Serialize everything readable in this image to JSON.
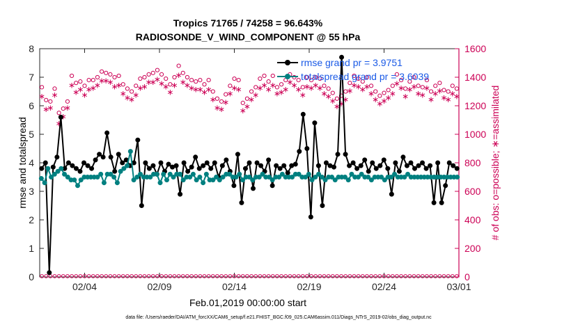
{
  "chart_data": {
    "type": "line",
    "title_line1": "Tropics 71765 / 74258 = 96.643%",
    "title_line2": "RADIOSONDE_V_WIND_COMPONENT @ 55 hPa",
    "xlabel": "Feb.01,2019 00:00:00 start",
    "ylabel_left": "rmse and totalspread",
    "ylabel_right": "# of obs: o=possible; ∗=assimilated",
    "footer": "data file: /Users/raeder/DAI/ATM_forcXX/CAM6_setup/f.e21.FHIST_BGC.f09_025.CAM6assim.011/Diags_NTrS_2019-02/obs_diag_output.nc",
    "x_range_days": [
      0,
      28
    ],
    "x_ticks": [
      {
        "day": 3,
        "label": "02/04"
      },
      {
        "day": 8,
        "label": "02/09"
      },
      {
        "day": 13,
        "label": "02/14"
      },
      {
        "day": 18,
        "label": "02/19"
      },
      {
        "day": 23,
        "label": "02/24"
      },
      {
        "day": 28,
        "label": "03/01"
      }
    ],
    "y_left": {
      "range": [
        0,
        8
      ],
      "ticks": [
        "0",
        "1",
        "2",
        "3",
        "4",
        "5",
        "6",
        "7",
        "8"
      ]
    },
    "y_right": {
      "range": [
        0,
        1600
      ],
      "ticks": [
        "0",
        "200",
        "400",
        "600",
        "800",
        "1000",
        "1200",
        "1400",
        "1600"
      ]
    },
    "colors": {
      "rmse": "#000000",
      "spread": "#008080",
      "obs": "#cc0055",
      "legend_text": "#1a5ae6"
    },
    "series": [
      {
        "name": "rmse grand pr = 3.9751",
        "values": [
          3.8,
          4.0,
          0.15,
          3.85,
          4.2,
          5.6,
          3.8,
          4.0,
          3.9,
          3.8,
          3.7,
          4.0,
          3.9,
          3.8,
          4.1,
          4.3,
          4.2,
          5.05,
          4.2,
          3.7,
          4.3,
          4.0,
          4.1,
          3.9,
          4.0,
          4.8,
          2.5,
          4.0,
          3.8,
          3.9,
          3.6,
          4.0,
          3.7,
          3.95,
          3.85,
          3.9,
          2.9,
          4.0,
          3.7,
          3.85,
          4.2,
          3.8,
          3.9,
          4.0,
          3.8,
          4.0,
          3.5,
          3.9,
          4.1,
          3.7,
          3.2,
          4.3,
          2.6,
          3.8,
          4.0,
          3.1,
          4.0,
          3.9,
          3.7,
          4.1,
          3.2,
          3.9,
          3.8,
          3.9,
          3.65,
          3.9,
          3.95,
          4.4,
          5.7,
          4.5,
          2.1,
          5.4,
          3.9,
          2.5,
          4.0,
          3.9,
          3.85,
          4.3,
          7.7,
          4.3,
          3.9,
          4.0,
          3.8,
          3.9,
          4.1,
          3.7,
          4.0,
          3.8,
          3.9,
          4.1,
          3.8,
          2.9,
          4.0,
          3.7,
          4.2,
          3.9,
          4.0,
          3.8,
          3.9,
          4.0,
          3.8,
          3.9,
          2.6,
          4.0,
          2.6,
          3.2,
          4.0,
          3.9,
          3.8
        ],
        "marker": "circle-filled"
      },
      {
        "name": "totalspread grand pr = 3.6039",
        "values": [
          3.45,
          3.3,
          3.8,
          3.5,
          3.6,
          3.7,
          3.8,
          3.6,
          3.5,
          3.4,
          3.4,
          3.2,
          3.4,
          3.5,
          3.5,
          3.5,
          3.5,
          3.5,
          3.6,
          3.3,
          3.6,
          3.6,
          3.5,
          3.3,
          3.7,
          3.8,
          3.9,
          4.4,
          3.4,
          3.5,
          3.6,
          3.5,
          3.5,
          3.5,
          3.6,
          3.6,
          3.3,
          3.6,
          3.4,
          3.6,
          3.5,
          3.6,
          3.6,
          3.4,
          3.5,
          3.5,
          3.6,
          3.4,
          3.5,
          3.3,
          3.6,
          3.4,
          3.4,
          3.5,
          3.4,
          3.5,
          3.6,
          3.6,
          3.5,
          3.5,
          3.6,
          3.4,
          3.5,
          3.5,
          3.4,
          3.5,
          3.5,
          3.6,
          3.5,
          3.5,
          3.4,
          3.5,
          3.5,
          3.6,
          3.5,
          3.5,
          3.5,
          3.6,
          3.6,
          3.5,
          3.5,
          3.6,
          3.4,
          3.5,
          3.6,
          3.5,
          3.4,
          3.5,
          3.5,
          3.4,
          3.5,
          3.5,
          3.5,
          3.4,
          3.6,
          3.5,
          3.5,
          3.6,
          3.5,
          3.5,
          3.4,
          3.5,
          3.5,
          3.5,
          3.4,
          3.5,
          3.5,
          3.6,
          3.5,
          3.5,
          3.5,
          3.6,
          3.5,
          3.5,
          3.5,
          3.5,
          3.5,
          3.5,
          3.5,
          3.5,
          3.5,
          3.5,
          3.5,
          3.5,
          3.5,
          3.5,
          3.5
        ],
        "marker": "circle-filled"
      }
    ],
    "obs_possible": [
      1330,
      1240,
      1230,
      1320,
      1150,
      1180,
      1230,
      1410,
      1360,
      1370,
      1340,
      1380,
      1380,
      1400,
      1440,
      1430,
      1420,
      1400,
      1410,
      1350,
      1320,
      1300,
      1340,
      1390,
      1400,
      1420,
      1430,
      1450,
      1420,
      1390,
      1350,
      1400,
      1480,
      1430,
      1400,
      1380,
      1370,
      1380,
      1350,
      1380,
      1300,
      1250,
      1230,
      1280,
      1340,
      1390,
      1380,
      1220,
      1250,
      1300,
      1330,
      1390,
      1410,
      1370,
      1410,
      1330,
      1350,
      1380,
      1420,
      1400,
      1380,
      1330,
      1400,
      1380,
      1400,
      1390,
      1340,
      1320,
      1290,
      1250,
      1270,
      1300,
      1360,
      1410,
      1390,
      1370,
      1400,
      1340,
      1300,
      1270,
      1290,
      1310,
      1340,
      1420,
      1380,
      1320,
      1370,
      1400,
      1340,
      1330,
      1380,
      1300,
      1340,
      1360,
      1310,
      1300,
      1340,
      1320
    ],
    "obs_assimilated": [
      1270,
      1180,
      1190,
      1280,
      1080,
      1130,
      1190,
      1350,
      1300,
      1320,
      1280,
      1320,
      1330,
      1350,
      1380,
      1380,
      1370,
      1340,
      1350,
      1290,
      1260,
      1250,
      1280,
      1330,
      1340,
      1370,
      1370,
      1390,
      1360,
      1340,
      1300,
      1350,
      1420,
      1370,
      1350,
      1330,
      1320,
      1320,
      1300,
      1320,
      1250,
      1190,
      1180,
      1230,
      1290,
      1330,
      1320,
      1170,
      1200,
      1250,
      1280,
      1330,
      1350,
      1320,
      1350,
      1290,
      1300,
      1320,
      1370,
      1350,
      1320,
      1280,
      1340,
      1330,
      1350,
      1330,
      1290,
      1270,
      1240,
      1200,
      1220,
      1250,
      1310,
      1350,
      1340,
      1320,
      1340,
      1290,
      1250,
      1220,
      1240,
      1260,
      1290,
      1360,
      1330,
      1270,
      1320,
      1340,
      1290,
      1280,
      1330,
      1250,
      1290,
      1310,
      1260,
      1250,
      1290,
      1270
    ],
    "obs_baseline": 5
  }
}
